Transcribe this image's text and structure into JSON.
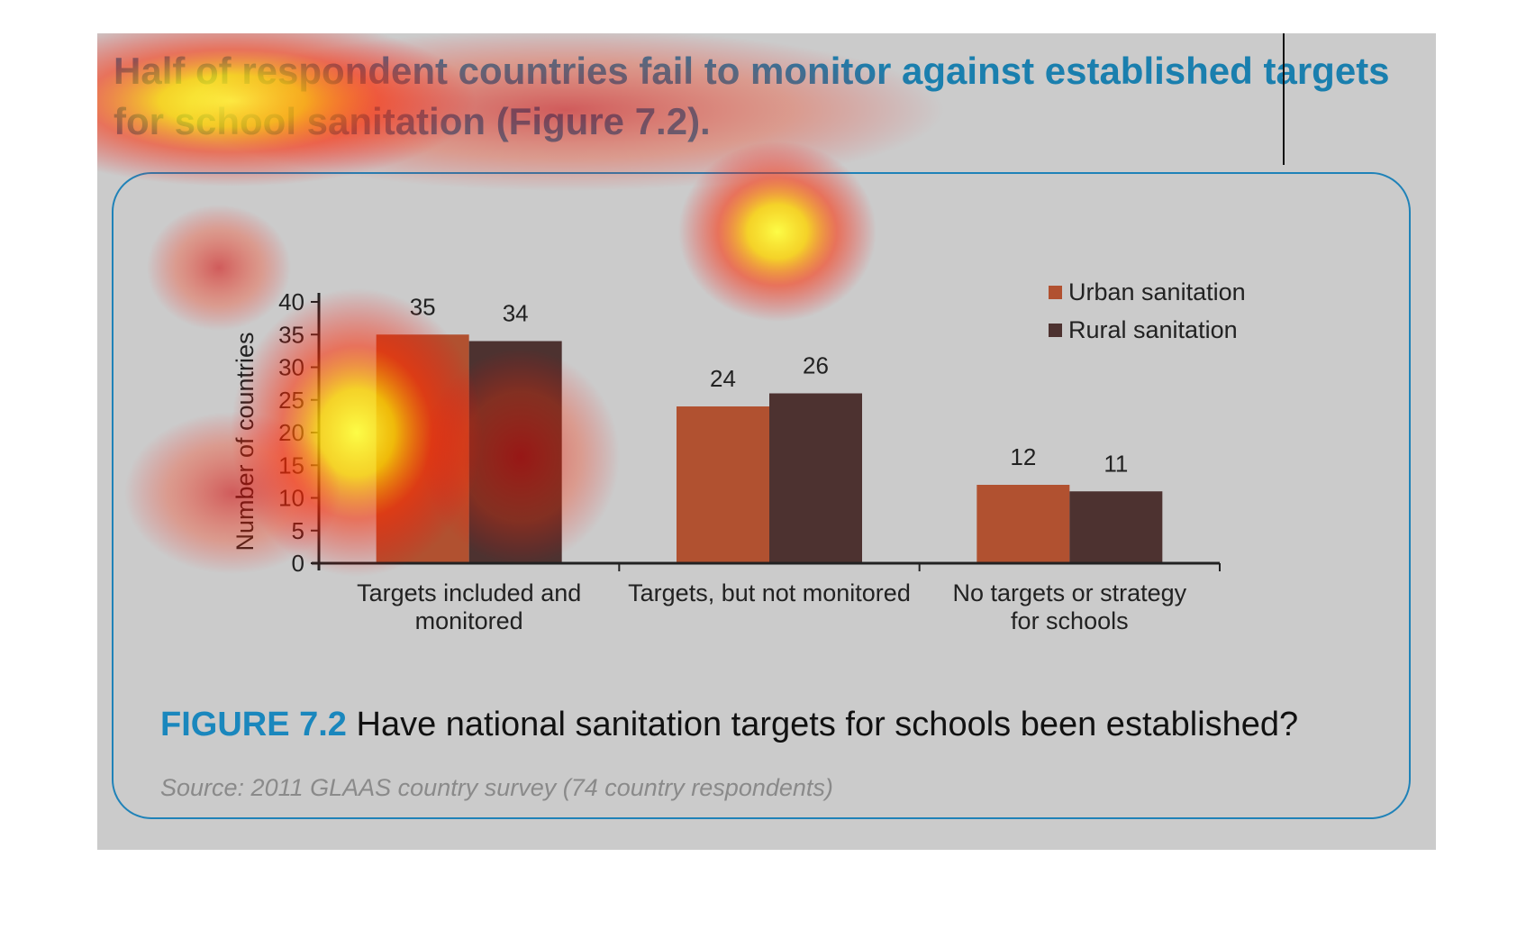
{
  "headline": "Half of respondent countries fail to monitor against established targets for school sanitation (Figure 7.2).",
  "caption": {
    "figure_label": "FIGURE 7.2",
    "text": "Have national sanitation targets for schools been established?"
  },
  "source": "Source: 2011 GLAAS country survey (74 country respondents)",
  "colors": {
    "urban": "#b15130",
    "rural": "#4d3230",
    "accent": "#1a87bd",
    "heatmap_overlay": "#ff2a00"
  },
  "chart_data": {
    "type": "bar",
    "categories": [
      [
        "Targets included and",
        "monitored"
      ],
      [
        "Targets, but not monitored"
      ],
      [
        "No targets or strategy",
        "for schools"
      ]
    ],
    "series": [
      {
        "name": "Urban sanitation",
        "values": [
          35,
          24,
          12
        ]
      },
      {
        "name": "Rural sanitation",
        "values": [
          34,
          26,
          11
        ]
      }
    ],
    "ylabel": "Number of countries",
    "xlabel": "",
    "ylim": [
      0,
      40
    ],
    "yticks": [
      0,
      5,
      10,
      15,
      20,
      25,
      30,
      35,
      40
    ],
    "grid": false,
    "legend": "top-right",
    "data_labels": true
  }
}
